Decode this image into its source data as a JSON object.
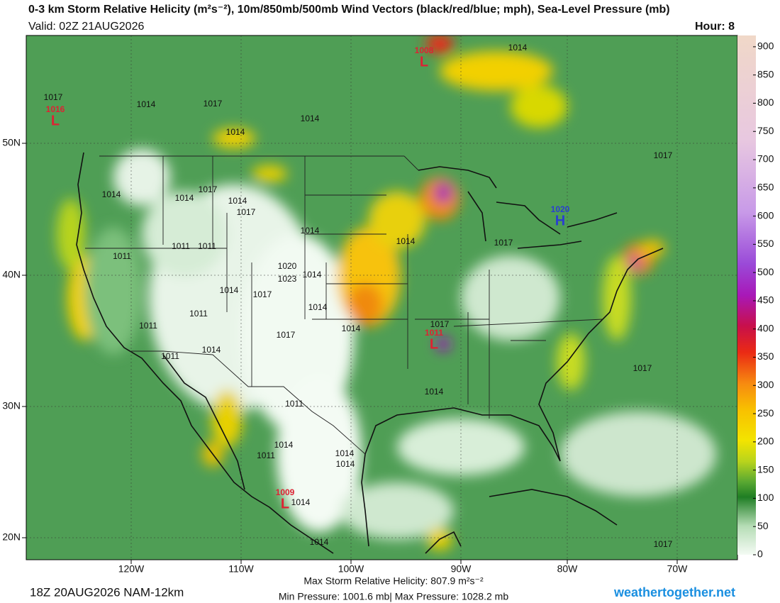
{
  "header": {
    "title": "0-3 km Storm Relative Helicity (m²s⁻²), 10m/850mb/500mb Wind Vectors (black/red/blue; mph), Sea-Level Pressure (mb)",
    "valid": "Valid: 02Z 21AUG2026",
    "hour": "Hour: 8"
  },
  "colorbar": {
    "ticks": [
      0,
      50,
      100,
      150,
      200,
      250,
      300,
      350,
      400,
      450,
      500,
      550,
      600,
      650,
      700,
      750,
      800,
      850,
      900
    ],
    "lim": [
      0,
      920
    ]
  },
  "map": {
    "lat_labels": [
      "20N",
      "30N",
      "40N",
      "50N"
    ],
    "lon_labels": [
      "120W",
      "110W",
      "100W",
      "90W",
      "80W",
      "70W"
    ],
    "isobar_labels": [
      1014,
      1017,
      1017,
      1014,
      1014,
      1014,
      1014,
      1014,
      1017,
      1014,
      1014,
      1011,
      1011,
      1011,
      1014,
      1017,
      1020,
      1023,
      1014,
      1017,
      1014,
      1011,
      1011,
      1017,
      1014,
      1011,
      1017,
      1014,
      1014,
      1014,
      1017,
      1011,
      1014,
      1014,
      1014,
      1011,
      1014,
      1017,
      1017,
      1014,
      1017
    ],
    "centers": [
      {
        "letter": "L",
        "value": "1008"
      },
      {
        "letter": "L",
        "value": "1016"
      },
      {
        "letter": "H",
        "value": "1020"
      },
      {
        "letter": "L",
        "value": "1011"
      },
      {
        "letter": "L",
        "value": "1009"
      }
    ]
  },
  "footer": {
    "run": "18Z 20AUG2026 NAM-12km",
    "max_srh": "Max Storm Relative Helicity: 807.9 m²s⁻²",
    "pressures": "Min Pressure: 1001.6 mb| Max Pressure: 1028.2 mb",
    "site": "weathertogether.net"
  }
}
